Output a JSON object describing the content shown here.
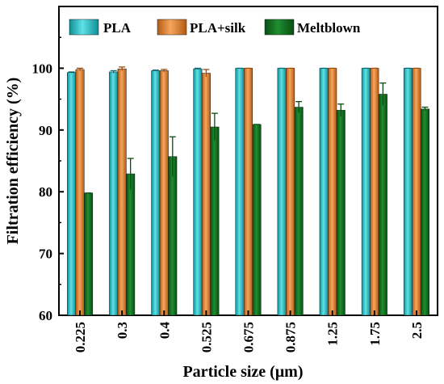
{
  "chart_data": {
    "type": "bar",
    "xlabel": "Particle size (μm)",
    "ylabel": "Filtration efficiency (%)",
    "ylim": [
      60,
      110
    ],
    "yticks": [
      60,
      70,
      80,
      90,
      100
    ],
    "legend_position": "top",
    "grid": false,
    "categories": [
      "0.225",
      "0.3",
      "0.4",
      "0.525",
      "0.675",
      "0.875",
      "1.25",
      "1.75",
      "2.5"
    ],
    "series": [
      {
        "name": "PLA",
        "color": "#1fb5bd",
        "values": [
          99.3,
          99.4,
          99.6,
          99.9,
          100,
          100,
          100,
          100,
          100
        ],
        "errors": [
          0.1,
          0.2,
          0.1,
          0.1,
          0,
          0,
          0,
          0,
          0
        ]
      },
      {
        "name": "PLA+silk",
        "color": "#e07b2a",
        "values": [
          99.8,
          99.9,
          99.6,
          99.2,
          100,
          100,
          100,
          100,
          100
        ],
        "errors": [
          0.2,
          0.3,
          0.2,
          0.6,
          0,
          0,
          0,
          0,
          0
        ]
      },
      {
        "name": "Meltblown",
        "color": "#0f6f1f",
        "values": [
          79.8,
          82.9,
          85.7,
          90.5,
          90.9,
          93.7,
          93.2,
          95.8,
          93.4
        ],
        "errors": [
          0,
          2.5,
          3.2,
          2.2,
          0,
          0.9,
          1.0,
          1.8,
          0.3
        ]
      }
    ]
  }
}
